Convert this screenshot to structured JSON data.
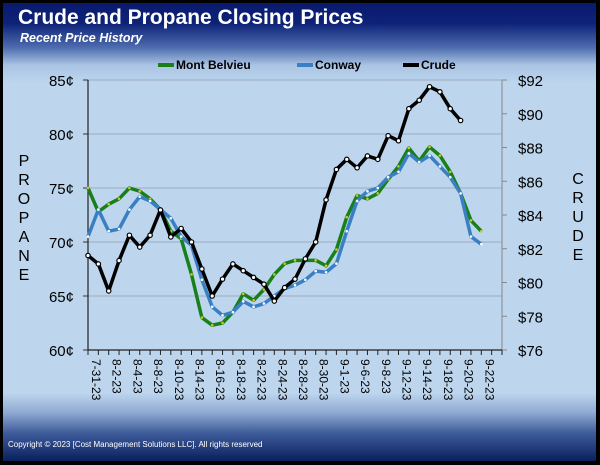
{
  "header": {
    "title": "Crude and Propane Closing Prices",
    "subtitle": "Recent Price History"
  },
  "axis_titles": {
    "left": "PROPANE",
    "right": "CRUDE"
  },
  "footer": {
    "copyright": "Copyright © 2023 [Cost Management Solutions LLC].  All rights reserved"
  },
  "chart_data": {
    "type": "line",
    "title": "Crude and Propane Closing Prices",
    "subtitle": "Recent Price History",
    "legend_position": "top",
    "grid": true,
    "x_tick_labels": [
      "7-31-23",
      "8-2-23",
      "8-4-23",
      "8-8-23",
      "8-10-23",
      "8-14-23",
      "8-16-23",
      "8-18-23",
      "8-22-23",
      "8-24-23",
      "8-28-23",
      "8-30-23",
      "9-1-23",
      "9-6-23",
      "9-8-23",
      "9-12-23",
      "9-14-23",
      "9-18-23",
      "9-20-23",
      "9-22-23"
    ],
    "n_points": 40,
    "left_axis": {
      "label": "PROPANE",
      "unit": "¢",
      "ylim": [
        60,
        85
      ],
      "ticks": [
        "85¢",
        "80¢",
        "75¢",
        "70¢",
        "65¢",
        "60¢"
      ]
    },
    "right_axis": {
      "label": "CRUDE",
      "unit": "$",
      "ylim": [
        76,
        92
      ],
      "ticks": [
        "$92",
        "$90",
        "$88",
        "$86",
        "$84",
        "$82",
        "$80",
        "$78",
        "$76"
      ]
    },
    "series": [
      {
        "name": "Mont Belvieu",
        "axis": "left",
        "color": "#17801a",
        "marker_color": "#d4c42a",
        "values": [
          75.0,
          72.8,
          73.5,
          74.0,
          75.0,
          74.7,
          74.0,
          73.0,
          71.0,
          70.3,
          67.0,
          63.0,
          62.3,
          62.5,
          63.5,
          65.2,
          64.6,
          65.6,
          67.0,
          68.0,
          68.3,
          68.3,
          68.3,
          67.8,
          69.3,
          72.3,
          74.3,
          74.0,
          74.5,
          75.8,
          77.0,
          78.7,
          77.5,
          78.8,
          78.0,
          76.5,
          74.5,
          72.0,
          71.0,
          null
        ]
      },
      {
        "name": "Conway",
        "axis": "left",
        "color": "#3a7fc4",
        "marker_color": "#ffffff",
        "values": [
          70.5,
          73.0,
          71.0,
          71.2,
          73.0,
          74.2,
          73.8,
          73.0,
          72.2,
          70.5,
          69.7,
          66.5,
          64.0,
          63.2,
          63.5,
          64.5,
          64.0,
          64.3,
          65.0,
          65.7,
          66.0,
          66.5,
          67.3,
          67.2,
          68.0,
          71.0,
          73.8,
          74.7,
          75.0,
          76.0,
          76.5,
          78.2,
          77.4,
          78.0,
          77.0,
          76.0,
          74.5,
          70.5,
          69.8,
          null
        ]
      },
      {
        "name": "Crude",
        "axis": "right",
        "color": "#000000",
        "marker_color": "#ffffff",
        "values": [
          81.6,
          81.1,
          79.5,
          81.3,
          82.8,
          82.1,
          82.8,
          84.3,
          82.7,
          83.2,
          82.4,
          80.8,
          79.2,
          80.2,
          81.1,
          80.7,
          80.3,
          79.9,
          78.9,
          79.7,
          80.2,
          81.4,
          82.4,
          84.9,
          86.7,
          87.3,
          86.8,
          87.5,
          87.3,
          88.7,
          88.4,
          90.3,
          90.8,
          91.6,
          91.3,
          90.3,
          89.6,
          null,
          null,
          null
        ]
      }
    ]
  }
}
